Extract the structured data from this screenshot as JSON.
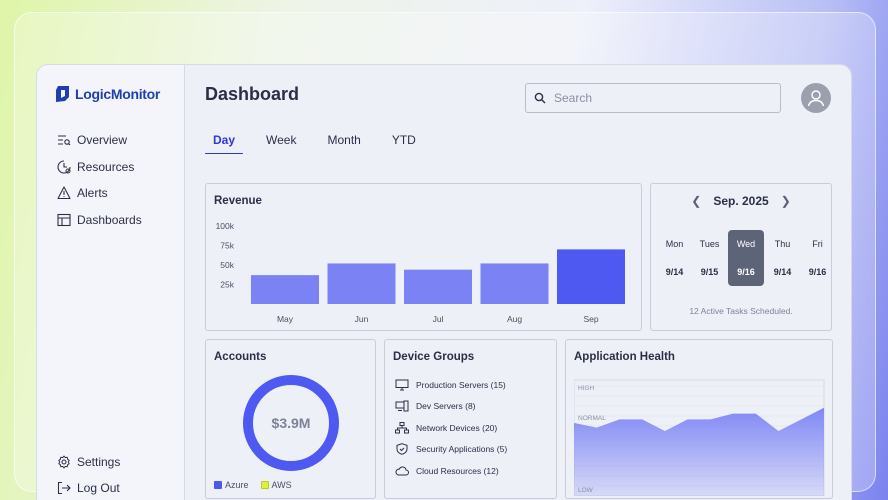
{
  "app": {
    "logo_text": "LogicMonitor"
  },
  "sidebar": {
    "items": [
      {
        "label": "Overview",
        "icon": "overview-icon"
      },
      {
        "label": "Resources",
        "icon": "resources-icon"
      },
      {
        "label": "Alerts",
        "icon": "alert-icon"
      },
      {
        "label": "Dashboards",
        "icon": "dashboard-icon"
      }
    ],
    "bottom": [
      {
        "label": "Settings",
        "icon": "gear-icon"
      },
      {
        "label": "Log Out",
        "icon": "logout-icon"
      }
    ]
  },
  "header": {
    "title": "Dashboard",
    "search_placeholder": "Search"
  },
  "tabs": [
    {
      "label": "Day",
      "active": true
    },
    {
      "label": "Week",
      "active": false
    },
    {
      "label": "Month",
      "active": false
    },
    {
      "label": "YTD",
      "active": false
    }
  ],
  "revenue": {
    "title": "Revenue",
    "chart_data": {
      "type": "bar",
      "categories": [
        "May",
        "Jun",
        "Jul",
        "Aug",
        "Sep"
      ],
      "values": [
        37000,
        52000,
        44000,
        52000,
        70000
      ],
      "yticks": [
        "100k",
        "75k",
        "50k",
        "25k"
      ],
      "ylim": [
        0,
        100000
      ],
      "colors": [
        "#7a82f4",
        "#7a82f4",
        "#7a82f4",
        "#7a82f4",
        "#4d59f0"
      ]
    }
  },
  "calendar": {
    "month": "Sep. 2025",
    "days": [
      {
        "name": "Mon",
        "date": "9/14",
        "active": false
      },
      {
        "name": "Tues",
        "date": "9/15",
        "active": false
      },
      {
        "name": "Wed",
        "date": "9/16",
        "active": true
      },
      {
        "name": "Thu",
        "date": "9/14",
        "active": false
      },
      {
        "name": "Fri",
        "date": "9/16",
        "active": false
      }
    ],
    "footer": "12 Active Tasks Scheduled."
  },
  "accounts": {
    "title": "Accounts",
    "value": "$3.9M",
    "legend": [
      {
        "label": "Azure",
        "color": "#4d59f0"
      },
      {
        "label": "AWS",
        "color": "#dcf03c"
      }
    ]
  },
  "devices": {
    "title": "Device Groups",
    "items": [
      {
        "label": "Production Servers (15)",
        "icon": "monitor-icon"
      },
      {
        "label": "Dev Servers (8)",
        "icon": "devices-icon"
      },
      {
        "label": "Network Devices (20)",
        "icon": "network-icon"
      },
      {
        "label": "Security Applications (5)",
        "icon": "shield-icon"
      },
      {
        "label": "Cloud Resources (12)",
        "icon": "cloud-icon"
      }
    ]
  },
  "health": {
    "title": "Application Health",
    "chart_data": {
      "type": "area",
      "levels": [
        "HIGH",
        "NORMAL",
        "LOW"
      ],
      "values": [
        0.63,
        0.59,
        0.66,
        0.66,
        0.56,
        0.66,
        0.66,
        0.71,
        0.71,
        0.56,
        0.66,
        0.76
      ],
      "color": "#7a82f4"
    }
  }
}
